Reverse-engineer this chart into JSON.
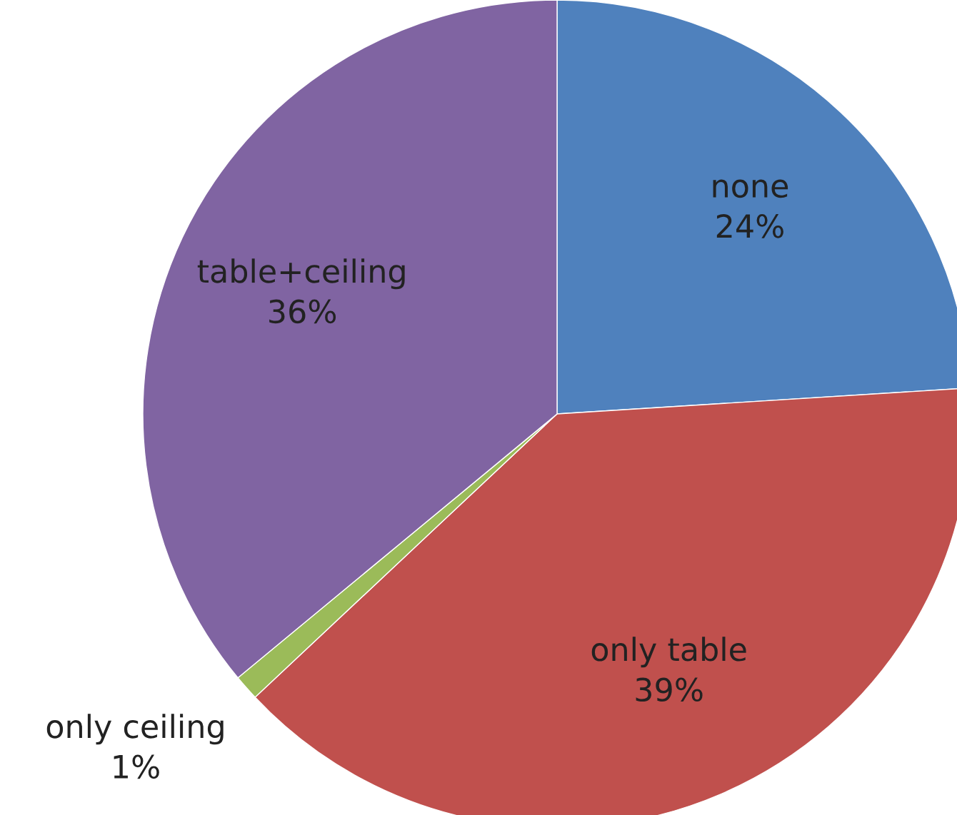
{
  "chart_data": {
    "type": "pie",
    "categories": [
      "none",
      "only table",
      "only ceiling",
      "table+ceiling"
    ],
    "values": [
      24,
      39,
      1,
      36
    ],
    "value_labels": [
      "24%",
      "39%",
      "1%",
      "36%"
    ],
    "colors": [
      "#4f81bd",
      "#c0504d",
      "#9bbb59",
      "#8064a2"
    ]
  }
}
